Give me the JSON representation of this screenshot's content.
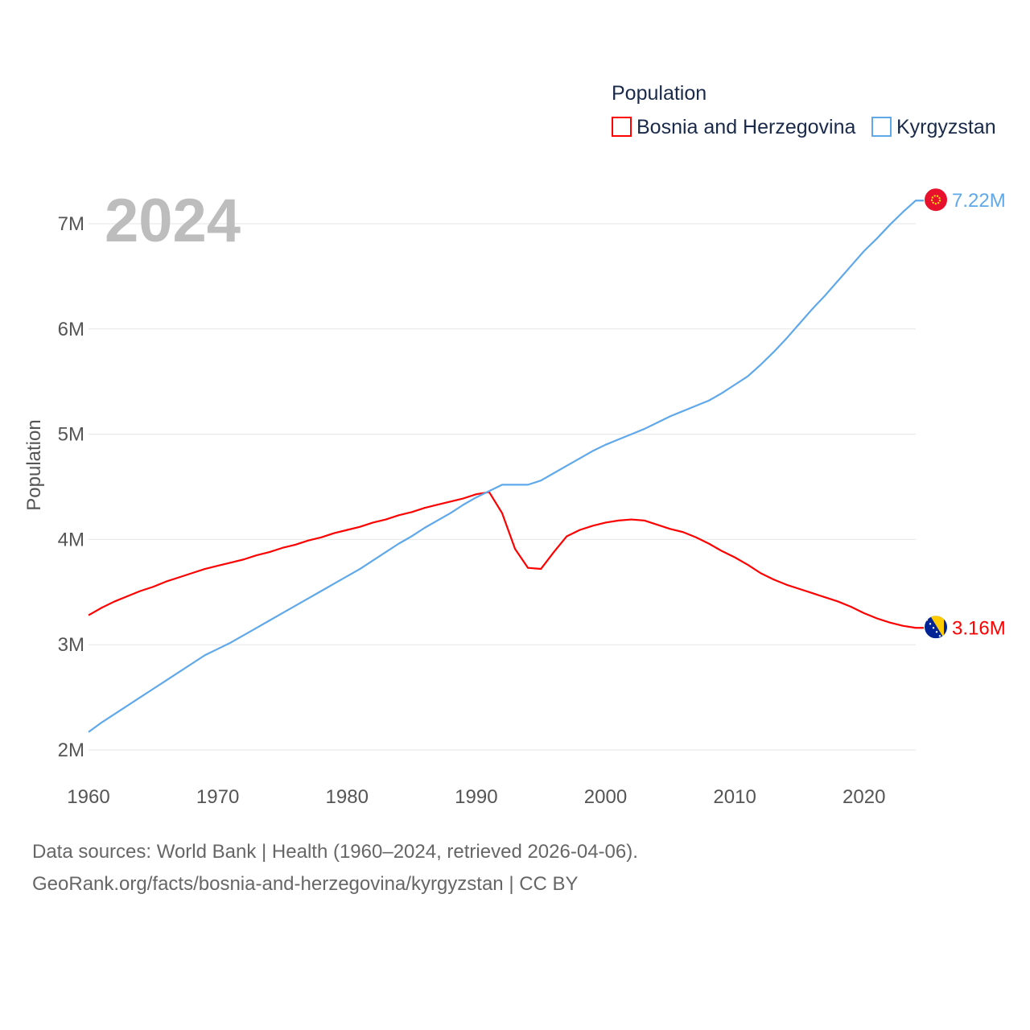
{
  "chart_data": {
    "type": "line",
    "title": "Population",
    "xlabel": "",
    "ylabel": "Population",
    "year_label": "2024",
    "xlim": [
      1960,
      2024
    ],
    "ylim": [
      2,
      7.25
    ],
    "x_ticks": [
      1960,
      1970,
      1980,
      1990,
      2000,
      2010,
      2020
    ],
    "x_tick_labels": [
      "1960",
      "1970",
      "1980",
      "1990",
      "2000",
      "2010",
      "2020"
    ],
    "y_ticks": [
      2,
      3,
      4,
      5,
      6,
      7
    ],
    "y_tick_labels": [
      "2M",
      "3M",
      "4M",
      "5M",
      "6M",
      "7M"
    ],
    "grid": true,
    "legend_placement": "top-right",
    "x": [
      1960,
      1961,
      1962,
      1963,
      1964,
      1965,
      1966,
      1967,
      1968,
      1969,
      1970,
      1971,
      1972,
      1973,
      1974,
      1975,
      1976,
      1977,
      1978,
      1979,
      1980,
      1981,
      1982,
      1983,
      1984,
      1985,
      1986,
      1987,
      1988,
      1989,
      1990,
      1991,
      1992,
      1993,
      1994,
      1995,
      1996,
      1997,
      1998,
      1999,
      2000,
      2001,
      2002,
      2003,
      2004,
      2005,
      2006,
      2007,
      2008,
      2009,
      2010,
      2011,
      2012,
      2013,
      2014,
      2015,
      2016,
      2017,
      2018,
      2019,
      2020,
      2021,
      2022,
      2023,
      2024
    ],
    "series": [
      {
        "name": "Bosnia and Herzegovina",
        "color": "#ff0000",
        "end_label": "3.16M",
        "values": [
          3.28,
          3.35,
          3.41,
          3.46,
          3.51,
          3.55,
          3.6,
          3.64,
          3.68,
          3.72,
          3.75,
          3.78,
          3.81,
          3.85,
          3.88,
          3.92,
          3.95,
          3.99,
          4.02,
          4.06,
          4.09,
          4.12,
          4.16,
          4.19,
          4.23,
          4.26,
          4.3,
          4.33,
          4.36,
          4.39,
          4.43,
          4.45,
          4.25,
          3.91,
          3.73,
          3.72,
          3.88,
          4.03,
          4.09,
          4.13,
          4.16,
          4.18,
          4.19,
          4.18,
          4.14,
          4.1,
          4.07,
          4.02,
          3.96,
          3.89,
          3.83,
          3.76,
          3.68,
          3.62,
          3.57,
          3.53,
          3.49,
          3.45,
          3.41,
          3.36,
          3.3,
          3.25,
          3.21,
          3.18,
          3.16
        ]
      },
      {
        "name": "Kyrgyzstan",
        "color": "#5fa8ea",
        "end_label": "7.22M",
        "values": [
          2.17,
          2.26,
          2.34,
          2.42,
          2.5,
          2.58,
          2.66,
          2.74,
          2.82,
          2.9,
          2.96,
          3.02,
          3.09,
          3.16,
          3.23,
          3.3,
          3.37,
          3.44,
          3.51,
          3.58,
          3.65,
          3.72,
          3.8,
          3.88,
          3.96,
          4.03,
          4.11,
          4.18,
          4.25,
          4.33,
          4.4,
          4.46,
          4.52,
          4.52,
          4.52,
          4.56,
          4.63,
          4.7,
          4.77,
          4.84,
          4.9,
          4.95,
          5.0,
          5.05,
          5.11,
          5.17,
          5.22,
          5.27,
          5.32,
          5.39,
          5.47,
          5.55,
          5.66,
          5.78,
          5.91,
          6.05,
          6.19,
          6.32,
          6.46,
          6.6,
          6.74,
          6.86,
          6.99,
          7.11,
          7.22
        ]
      }
    ]
  },
  "footer": {
    "line1": "Data sources: World Bank | Health (1960–2024, retrieved 2026-04-06).",
    "line2": "GeoRank.org/facts/bosnia-and-herzegovina/kyrgyzstan | CC BY"
  }
}
